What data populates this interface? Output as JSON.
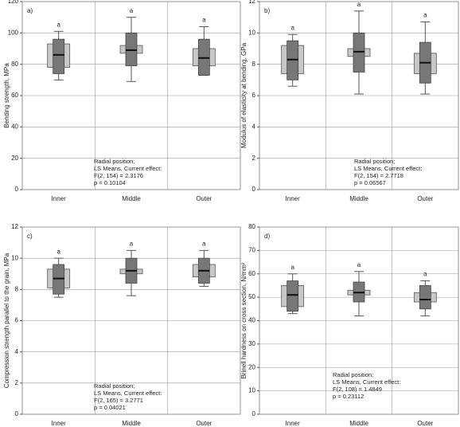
{
  "chart_data": [
    {
      "type": "box",
      "panel_label": "a)",
      "ylabel": "Bending strength, MPa",
      "categories": [
        "Inner",
        "Middle",
        "Outer"
      ],
      "letters": [
        "a",
        "a",
        "a"
      ],
      "light_low": [
        78,
        87,
        79
      ],
      "light_high": [
        93,
        92,
        90
      ],
      "q1": [
        74,
        79,
        73
      ],
      "median": [
        86,
        89,
        84
      ],
      "q3": [
        96,
        100,
        96
      ],
      "whisker_low": [
        70,
        69,
        73
      ],
      "whisker_high": [
        101,
        110,
        104
      ],
      "ylim": [
        0,
        120
      ],
      "yticks": [
        0,
        20,
        40,
        60,
        80,
        100,
        120
      ],
      "grid": true,
      "annotation": [
        "Radial position;",
        "LS Means, Current effect:",
        "F(2, 154) = 2.3176",
        "p = 0.10104"
      ]
    },
    {
      "type": "box",
      "panel_label": "b)",
      "ylabel": "Modulus of elasticity at bending, GPa",
      "categories": [
        "Inner",
        "Middle",
        "Outer"
      ],
      "letters": [
        "a",
        "a",
        "a"
      ],
      "light_low": [
        7.4,
        8.5,
        7.4
      ],
      "light_high": [
        9.2,
        9.0,
        8.7
      ],
      "q1": [
        7.0,
        7.5,
        6.8
      ],
      "median": [
        8.3,
        8.8,
        8.1
      ],
      "q3": [
        9.5,
        10.0,
        9.4
      ],
      "whisker_low": [
        6.6,
        6.1,
        6.1
      ],
      "whisker_high": [
        9.9,
        11.4,
        10.7
      ],
      "ylim": [
        0,
        12
      ],
      "yticks": [
        0,
        2,
        4,
        6,
        8,
        10,
        12
      ],
      "grid": true,
      "annotation": [
        "Radial position;",
        "LS Means, Current effect:",
        "F(2, 154) = 2.7718",
        "p = 0.06567"
      ]
    },
    {
      "type": "box",
      "panel_label": "c)",
      "ylabel": "Compression strength parallel to the grain, MPa",
      "categories": [
        "Inner",
        "Middle",
        "Outer"
      ],
      "letters": [
        "a",
        "a",
        "a"
      ],
      "light_low": [
        8.1,
        9.0,
        8.8
      ],
      "light_high": [
        9.3,
        9.3,
        9.6
      ],
      "q1": [
        7.7,
        8.4,
        8.4
      ],
      "median": [
        8.7,
        9.2,
        9.2
      ],
      "q3": [
        9.6,
        10.0,
        10.0
      ],
      "whisker_low": [
        7.5,
        7.6,
        8.2
      ],
      "whisker_high": [
        10.0,
        10.5,
        10.5
      ],
      "ylim": [
        0,
        12
      ],
      "yticks": [
        0,
        2,
        4,
        6,
        8,
        10,
        12
      ],
      "grid": true,
      "annotation": [
        "Radial position;",
        "LS Means, Current effect:",
        "F(2, 165) = 3.2771",
        "p = 0.04021"
      ]
    },
    {
      "type": "box",
      "panel_label": "d)",
      "ylabel": "Brinell hardness on cross section, N/mm²",
      "categories": [
        "Inner",
        "Middle",
        "Outer"
      ],
      "letters": [
        "a",
        "a",
        "a"
      ],
      "light_low": [
        46,
        51,
        48
      ],
      "light_high": [
        55,
        53,
        52
      ],
      "q1": [
        44,
        48,
        45
      ],
      "median": [
        51,
        52,
        49
      ],
      "q3": [
        57,
        56.5,
        55
      ],
      "whisker_low": [
        43,
        42,
        42
      ],
      "whisker_high": [
        60,
        61,
        57
      ],
      "ylim": [
        0,
        80
      ],
      "yticks": [
        0,
        10,
        20,
        30,
        40,
        50,
        60,
        70,
        80
      ],
      "grid": true,
      "annotation": [
        "Radial position;",
        "LS Means, Current effect:",
        "F(2, 108) = 1.4849",
        "p = 0.23112"
      ]
    }
  ]
}
